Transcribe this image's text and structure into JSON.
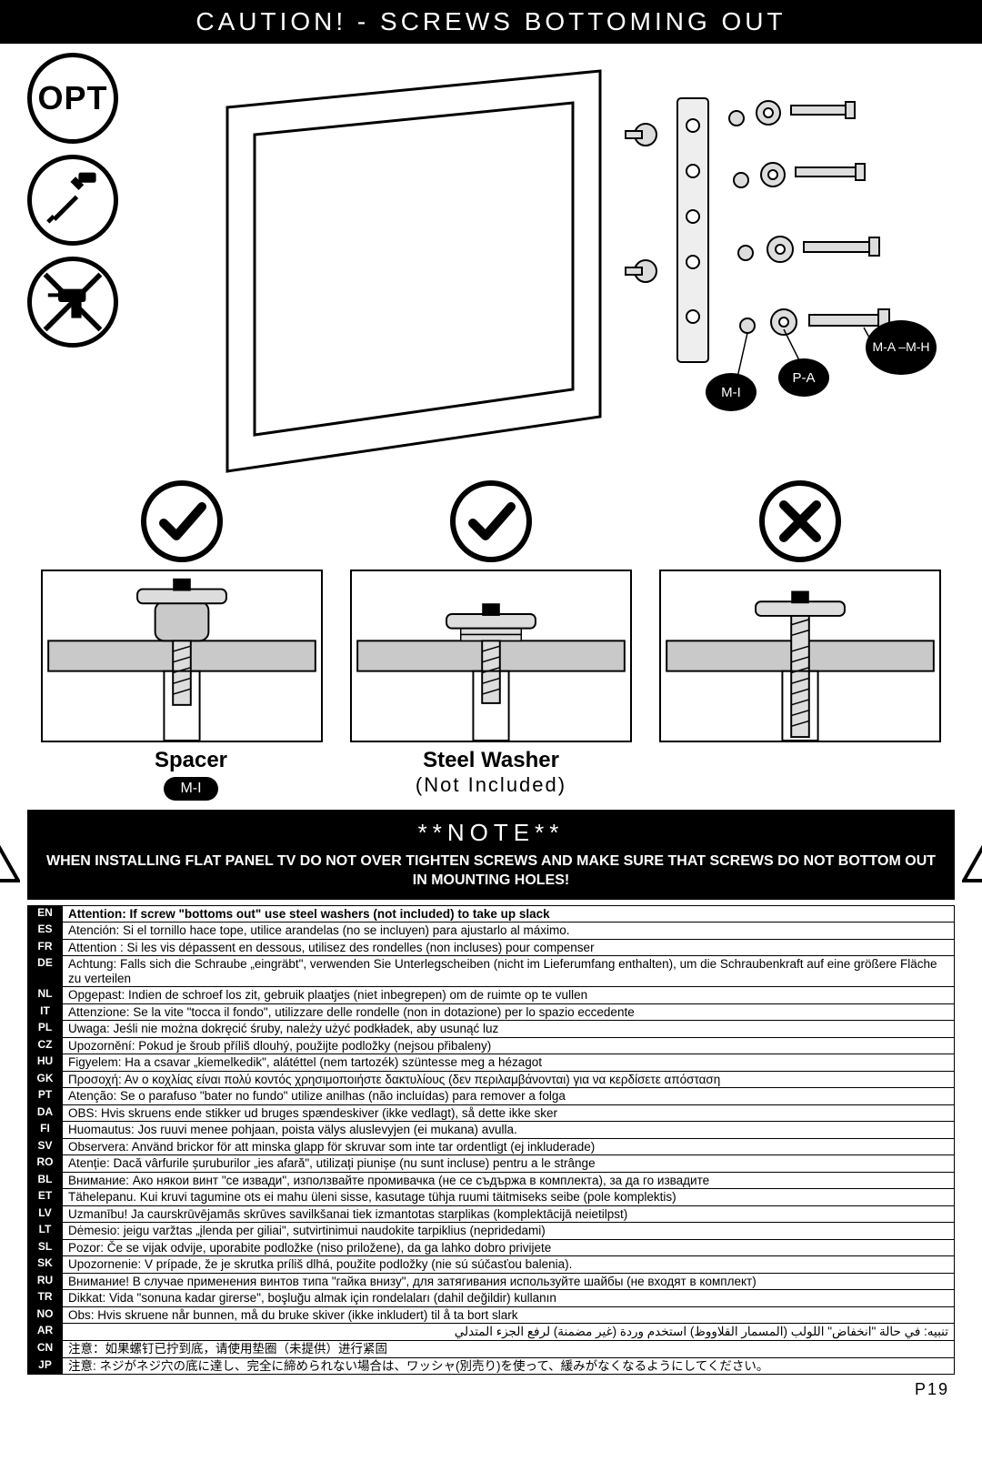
{
  "header": "CAUTION! - SCREWS BOTTOMING OUT",
  "icons": {
    "opt": "OPT"
  },
  "part_labels": {
    "mi": "M-I",
    "pa": "P-A",
    "mah_top": "M-A –",
    "mah_bot": "M-H"
  },
  "mid_labels": {
    "spacer": "Spacer",
    "spacer_pill": "M-I",
    "washer": "Steel Washer",
    "washer_sub": "(Not Included)"
  },
  "note": {
    "title": "**NOTE**",
    "body": "WHEN INSTALLING FLAT PANEL TV DO NOT OVER TIGHTEN SCREWS AND MAKE SURE THAT SCREWS DO NOT BOTTOM OUT IN MOUNTING HOLES!"
  },
  "langs": [
    {
      "code": "EN",
      "text": "Attention: If screw \"bottoms out\" use steel washers (not included) to take up slack",
      "bold": true
    },
    {
      "code": "ES",
      "text": "Atención: Si el tornillo hace tope, utilice arandelas (no se incluyen) para ajustarlo al máximo."
    },
    {
      "code": "FR",
      "text": "Attention : Si les vis dépassent en dessous, utilisez des rondelles (non incluses) pour compenser"
    },
    {
      "code": "DE",
      "text": "Achtung: Falls sich die Schraube „eingräbt\", verwenden Sie Unterlegscheiben (nicht im Lieferumfang enthalten), um die Schraubenkraft auf eine größere Fläche zu verteilen"
    },
    {
      "code": "NL",
      "text": "Opgepast: Indien de schroef los zit, gebruik plaatjes (niet inbegrepen) om de ruimte op te vullen"
    },
    {
      "code": "IT",
      "text": "Attenzione: Se la vite \"tocca il fondo\", utilizzare delle rondelle (non in dotazione) per lo spazio eccedente"
    },
    {
      "code": "PL",
      "text": "Uwaga: Jeśli nie można dokręcić śruby, należy użyć podkładek, aby usunąć luz"
    },
    {
      "code": "CZ",
      "text": "Upozornění: Pokud je šroub příliš dlouhý, použijte podložky (nejsou přibaleny)"
    },
    {
      "code": "HU",
      "text": "Figyelem: Ha a csavar „kiemelkedik\", alátéttel (nem tartozék) szüntesse meg a hézagot"
    },
    {
      "code": "GK",
      "text": "Προσοχή: Αν ο κοχλίας είναι πολύ κοντός χρησιμοποιήστε δακτυλίους (δεν περιλαμβάνονται) για να κερδίσετε απόσταση"
    },
    {
      "code": "PT",
      "text": "Atenção: Se o parafuso \"bater no fundo\" utilize anilhas (não incluídas) para remover a folga"
    },
    {
      "code": "DA",
      "text": "OBS: Hvis skruens ende stikker ud bruges spændeskiver (ikke vedlagt), så dette ikke sker"
    },
    {
      "code": "FI",
      "text": "Huomautus: Jos ruuvi menee pohjaan, poista välys aluslevyjen (ei mukana) avulla."
    },
    {
      "code": "SV",
      "text": "Observera: Använd brickor för att minska glapp för skruvar som inte tar ordentligt (ej inkluderade)"
    },
    {
      "code": "RO",
      "text": "Atenție: Dacă vârfurile șuruburilor „ies afară\", utilizați piunișe (nu sunt incluse) pentru a le strânge"
    },
    {
      "code": "BL",
      "text": "Внимание: Ако някои винт \"се извади\", използвайте промивачка (не се съдържа в комплекта), за да го извадите"
    },
    {
      "code": "ET",
      "text": "Tähelepanu. Kui kruvi tagumine ots ei mahu üleni sisse, kasutage tühja ruumi täitmiseks seibe (pole komplektis)"
    },
    {
      "code": "LV",
      "text": "Uzmanību! Ja caurskrūvējamās skrūves savilkšanai tiek izmantotas starplikas (komplektācijā neietilpst)"
    },
    {
      "code": "LT",
      "text": "Dėmesio: jeigu varžtas „įlenda per giliai\", sutvirtinimui naudokite tarpiklius (nepridedami)"
    },
    {
      "code": "SL",
      "text": "Pozor: Če se vijak odvije, uporabite podložke (niso priložene), da ga lahko dobro privijete"
    },
    {
      "code": "SK",
      "text": "Upozornenie: V prípade, že je skrutka príliš dlhá, použite podložky (nie sú súčasťou balenia)."
    },
    {
      "code": "RU",
      "text": "Внимание! В случае применения винтов типа \"гайка внизу\", для затягивания используйте шайбы (не входят в комплект)"
    },
    {
      "code": "TR",
      "text": "Dikkat: Vida \"sonuna kadar girerse\", boşluğu almak için rondelaları (dahil değildir) kullanın"
    },
    {
      "code": "NO",
      "text": "Obs: Hvis skruene når bunnen, må du bruke skiver (ikke inkludert) til å ta bort slark"
    },
    {
      "code": "AR",
      "text": "تنبيه: في حالة \"انخفاض\" اللولب (المسمار القلاووظ) استخدم وردة (غير مضمنة) لرفع الجزء المتدلي"
    },
    {
      "code": "CN",
      "text": "注意：如果螺钉已拧到底，请使用垫圈（未提供）进行紧固"
    },
    {
      "code": "JP",
      "text": "注意: ネジがネジ穴の底に達し、完全に締められない場合は、ワッシャ(別売り)を使って、緩みがなくなるようにしてください。"
    }
  ],
  "page_num": "P19",
  "colors": {
    "black": "#000000",
    "white": "#ffffff",
    "gray": "#c9c9c9"
  }
}
